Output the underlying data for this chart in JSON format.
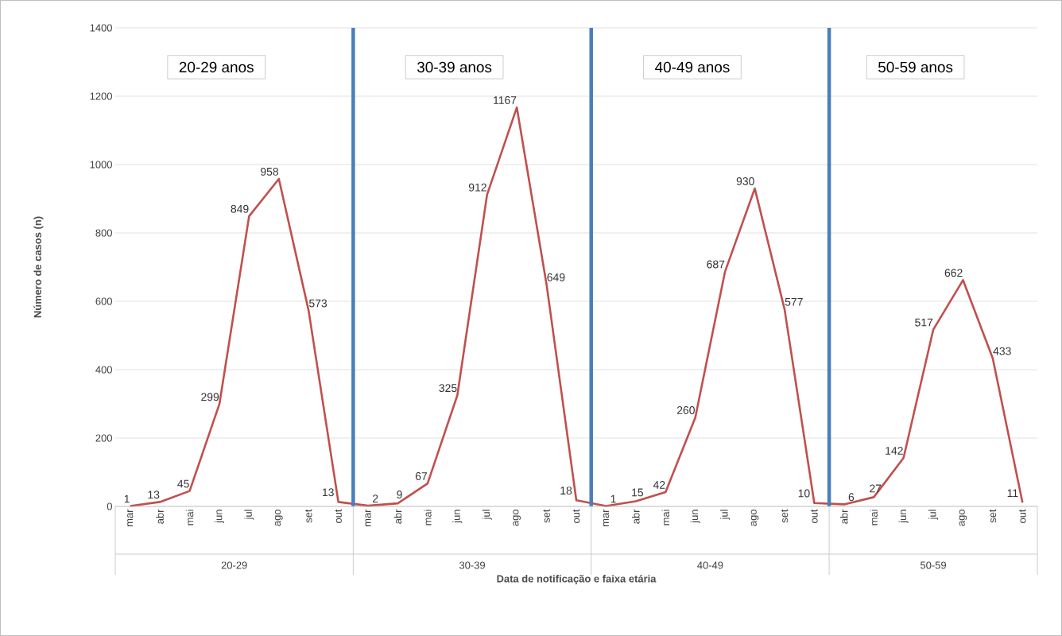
{
  "chart_data": {
    "type": "line",
    "xlabel": "Data de notificação e faixa etária",
    "ylabel": "Número de casos (n)",
    "categories": [
      "mar",
      "abr",
      "mai",
      "jun",
      "jul",
      "ago",
      "set",
      "out",
      "mar",
      "abr",
      "mai",
      "jun",
      "jul",
      "ago",
      "set",
      "out",
      "mar",
      "abr",
      "mai",
      "jun",
      "jul",
      "ago",
      "set",
      "out",
      "abr",
      "mai",
      "jun",
      "jul",
      "ago",
      "set",
      "out"
    ],
    "series": [
      {
        "color": "#c0504d",
        "values": [
          1,
          13,
          45,
          299,
          849,
          958,
          573,
          13,
          2,
          9,
          67,
          325,
          912,
          1167,
          649,
          18,
          1,
          15,
          42,
          260,
          687,
          930,
          577,
          10,
          6,
          27,
          142,
          517,
          662,
          433,
          11
        ]
      }
    ],
    "ylim": [
      0,
      1400
    ],
    "yticks": [
      0,
      200,
      400,
      600,
      800,
      1000,
      1200,
      1400
    ],
    "grid": "y",
    "data_labels": true,
    "marker": "none",
    "line_style": "solid",
    "annotations": [
      "20-29 anos",
      "30-39 anos",
      "40-49 anos",
      "50-59 anos",
      "20-29",
      "30-39",
      "40-49",
      "50-59"
    ]
  }
}
